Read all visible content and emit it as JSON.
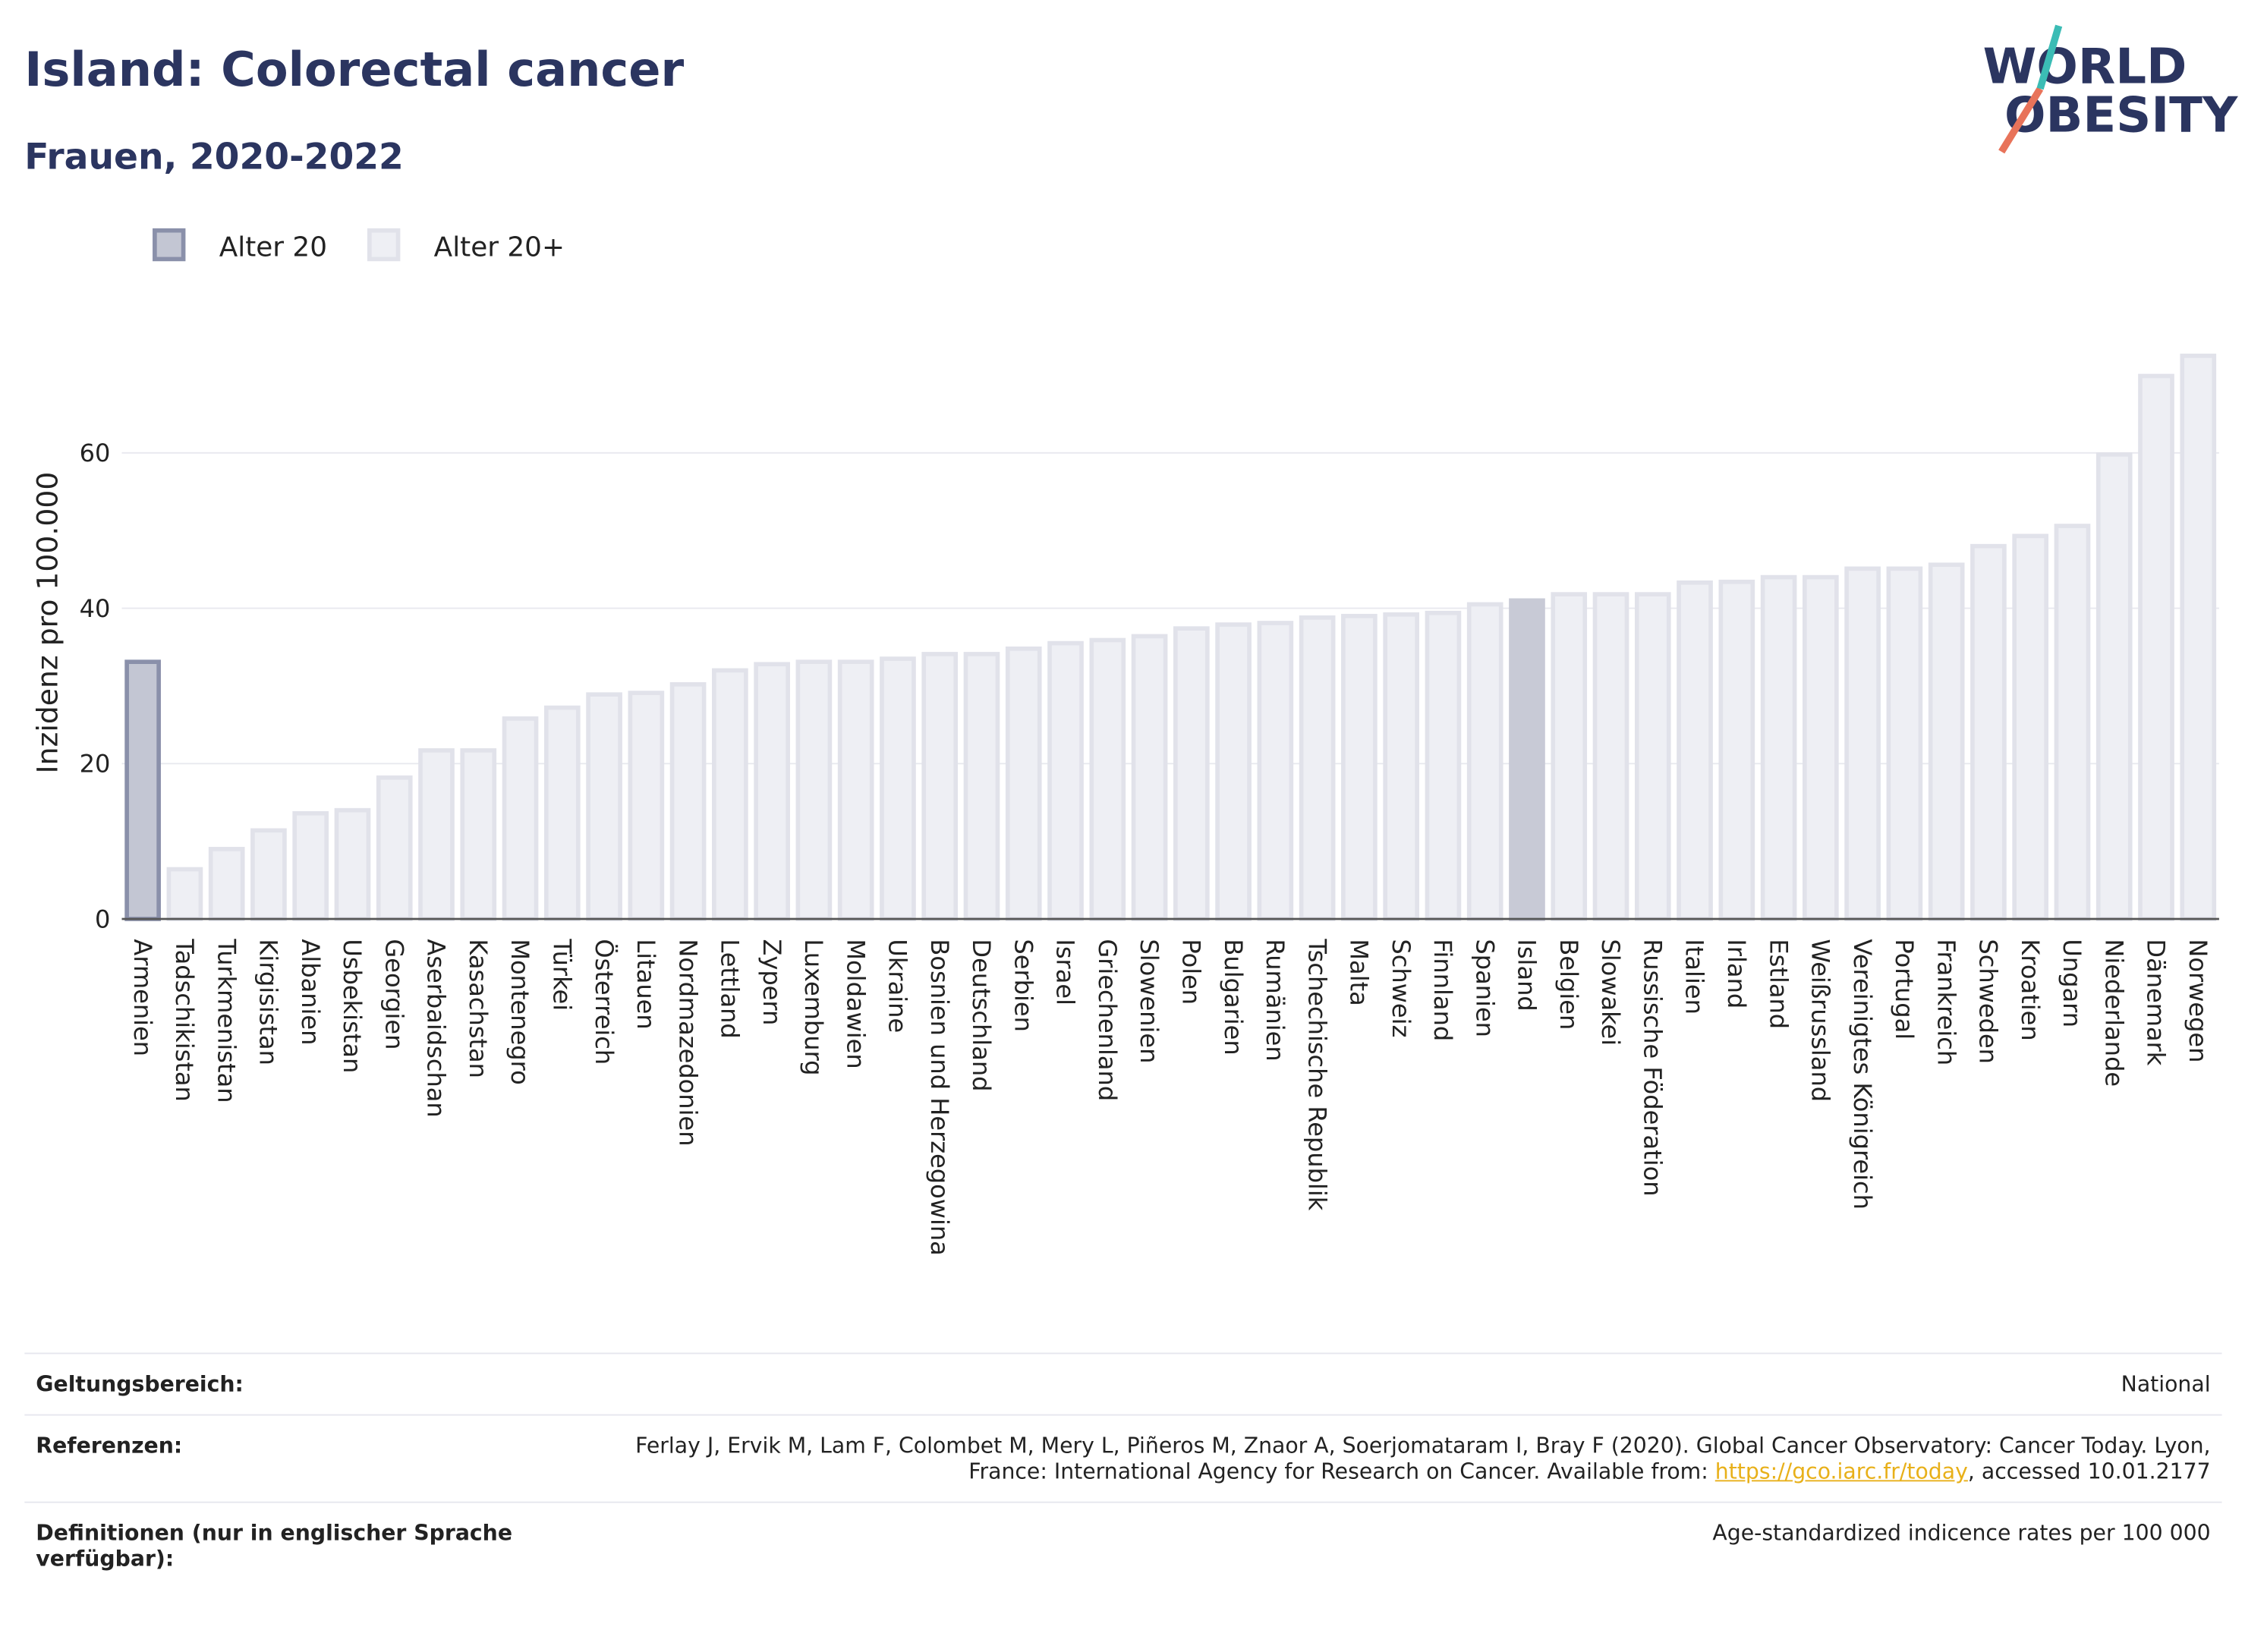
{
  "chart_data": {
    "type": "bar",
    "title": "Island: Colorectal cancer",
    "subtitle": "Frauen, 2020-2022",
    "y_label": "Inzidenz pro 100.000",
    "highlight": "Island",
    "highlight_color": "#c8cad6",
    "categories": [
      "Armenien",
      "Tadschikistan",
      "Turkmenistan",
      "Kirgisistan",
      "Albanien",
      "Usbekistan",
      "Georgien",
      "Aserbaidschan",
      "Kasachstan",
      "Montenegro",
      "Türkei",
      "Österreich",
      "Litauen",
      "Nordmazedonien",
      "Lettland",
      "Zypern",
      "Luxemburg",
      "Moldawien",
      "Ukraine",
      "Bosnien und Herzegowina",
      "Deutschland",
      "Serbien",
      "Israel",
      "Griechenland",
      "Slowenien",
      "Polen",
      "Bulgarien",
      "Rumänien",
      "Tschechische Republik",
      "Malta",
      "Schweiz",
      "Finnland",
      "Spanien",
      "Island",
      "Belgien",
      "Slowakei",
      "Russische Föderation",
      "Italien",
      "Irland",
      "Estland",
      "Weißrussland",
      "Vereinigtes Königreich",
      "Portugal",
      "Frankreich",
      "Schweden",
      "Kroatien",
      "Ungarn",
      "Niederlande",
      "Dänemark",
      "Norwegen"
    ],
    "series": [
      {
        "name": "Alter 20",
        "color": "#c3c6d3",
        "stroke": "#8a90aa",
        "values": [
          33.1,
          null,
          null,
          null,
          null,
          null,
          null,
          null,
          null,
          null,
          null,
          null,
          null,
          null,
          null,
          null,
          null,
          null,
          null,
          null,
          null,
          null,
          null,
          null,
          null,
          null,
          null,
          null,
          null,
          null,
          null,
          null,
          null,
          null,
          null,
          null,
          null,
          null,
          null,
          null,
          null,
          null,
          null,
          null,
          null,
          null,
          null,
          null,
          null,
          null
        ]
      },
      {
        "name": "Alter 20+",
        "color": "#eeeff4",
        "stroke": "#e1e2ea",
        "values": [
          null,
          6.4,
          9.0,
          11.4,
          13.6,
          14.0,
          18.2,
          21.7,
          21.7,
          25.8,
          27.2,
          28.9,
          29.1,
          30.2,
          32.0,
          32.8,
          33.1,
          33.1,
          33.5,
          34.1,
          34.1,
          34.8,
          35.5,
          35.9,
          36.4,
          37.4,
          37.9,
          38.1,
          38.8,
          39.0,
          39.2,
          39.4,
          40.5,
          41.0,
          41.8,
          41.8,
          41.8,
          43.3,
          43.4,
          44.0,
          44.0,
          45.1,
          45.1,
          45.6,
          48.0,
          49.3,
          50.6,
          59.8,
          69.9,
          72.5
        ]
      }
    ],
    "ylim": [
      0,
      75
    ],
    "yticks": [
      0,
      20,
      40,
      60
    ],
    "grid": true,
    "legend": "top-left"
  },
  "logo": {
    "line1": "WORLD",
    "line2": "OBESITY"
  },
  "footer": {
    "rows": [
      {
        "label": "Geltungsbereich:",
        "text": "National"
      },
      {
        "label": "Referenzen:",
        "text": "Ferlay J, Ervik M, Lam F, Colombet M, Mery L, Piñeros M, Znaor A, Soerjomataram I, Bray F (2020). Global Cancer Observatory: Cancer Today. Lyon, France: International Agency for Research on Cancer. Available from: ",
        "link": "https://gco.iarc.fr/today",
        "text_after": ", accessed 10.01.2177"
      },
      {
        "label": "Definitionen (nur in englischer Sprache verfügbar):",
        "text": "Age-standardized indicence rates per 100 000"
      }
    ]
  }
}
